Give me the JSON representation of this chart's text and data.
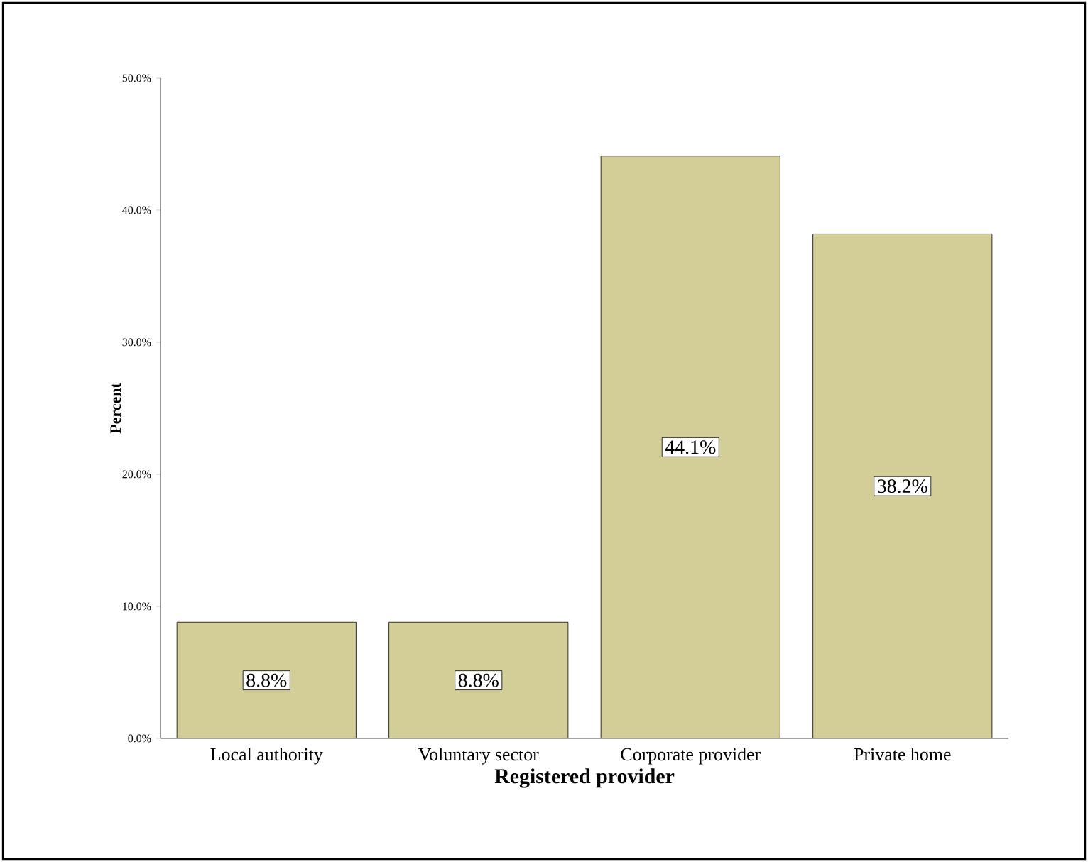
{
  "chart_data": {
    "type": "bar",
    "xlabel": "Registered provider",
    "ylabel": "Percent",
    "categories": [
      "Local authority",
      "Voluntary sector",
      "Corporate provider",
      "Private home"
    ],
    "values": [
      8.8,
      8.8,
      44.1,
      38.2
    ],
    "value_labels": [
      "8.8%",
      "8.8%",
      "44.1%",
      "38.2%"
    ],
    "color": "#d3ce97",
    "ylim": [
      0,
      50
    ],
    "yticks": [
      {
        "value": 0,
        "label": "0.0%"
      },
      {
        "value": 10,
        "label": "10.0%"
      },
      {
        "value": 20,
        "label": "20.0%"
      },
      {
        "value": 30,
        "label": "30.0%"
      },
      {
        "value": 40,
        "label": "40.0%"
      },
      {
        "value": 50,
        "label": "50.0%"
      }
    ],
    "grid": false
  }
}
